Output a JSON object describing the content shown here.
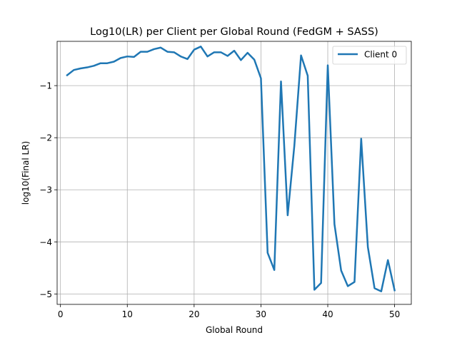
{
  "chart_data": {
    "type": "line",
    "title": "Log10(LR) per Client per Global Round (FedGM + SASS)",
    "xlabel": "Global Round",
    "ylabel": "log10(Final LR)",
    "xlim": [
      -0.5,
      52.5
    ],
    "ylim": [
      -5.2,
      -0.15
    ],
    "xticks": [
      0,
      10,
      20,
      30,
      40,
      50
    ],
    "yticks": [
      -1,
      -2,
      -3,
      -4,
      -5
    ],
    "xtick_labels": [
      "0",
      "10",
      "20",
      "30",
      "40",
      "50"
    ],
    "ytick_labels": [
      "−1",
      "−2",
      "−3",
      "−4",
      "−5"
    ],
    "grid": true,
    "legend_position": "top-right",
    "series": [
      {
        "name": "Client 0",
        "color": "#1f77b4",
        "x": [
          1,
          2,
          3,
          4,
          5,
          6,
          7,
          8,
          9,
          10,
          11,
          12,
          13,
          14,
          15,
          16,
          17,
          18,
          19,
          20,
          21,
          22,
          23,
          24,
          25,
          26,
          27,
          28,
          29,
          30,
          31,
          32,
          33,
          34,
          35,
          36,
          37,
          38,
          39,
          40,
          41,
          42,
          43,
          44,
          45,
          46,
          47,
          48,
          49,
          50
        ],
        "y": [
          -0.8,
          -0.7,
          -0.67,
          -0.65,
          -0.62,
          -0.57,
          -0.57,
          -0.54,
          -0.47,
          -0.44,
          -0.45,
          -0.35,
          -0.35,
          -0.3,
          -0.27,
          -0.35,
          -0.36,
          -0.44,
          -0.49,
          -0.31,
          -0.25,
          -0.44,
          -0.36,
          -0.36,
          -0.43,
          -0.33,
          -0.51,
          -0.37,
          -0.5,
          -0.86,
          -4.21,
          -4.54,
          -0.92,
          -3.49,
          -2.15,
          -0.42,
          -0.81,
          -4.92,
          -4.79,
          -0.61,
          -3.66,
          -4.55,
          -4.85,
          -4.77,
          -2.02,
          -4.1,
          -4.89,
          -4.95,
          -4.35,
          -4.93
        ]
      }
    ]
  }
}
